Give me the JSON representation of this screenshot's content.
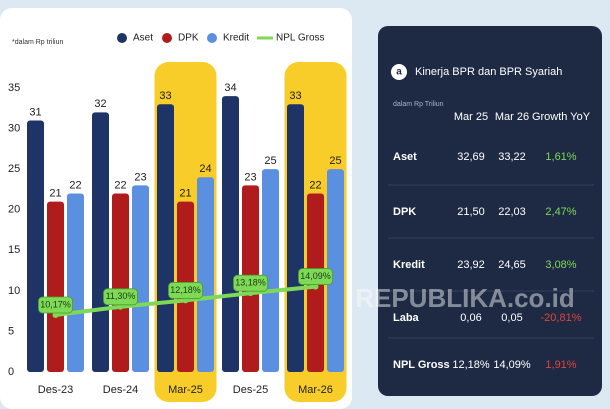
{
  "chart_data": {
    "type": "bar",
    "note": "*dalam Rp triliun",
    "categories": [
      "Des-23",
      "Des-24",
      "Mar-25",
      "Des-25",
      "Mar-26"
    ],
    "series": [
      {
        "name": "Aset",
        "color": "#1f3466",
        "values": [
          31,
          32,
          33,
          34,
          33
        ]
      },
      {
        "name": "DPK",
        "color": "#b01c1c",
        "values": [
          21,
          22,
          21,
          23,
          22
        ]
      },
      {
        "name": "Kredit",
        "color": "#5b8fe0",
        "values": [
          22,
          23,
          24,
          25,
          25
        ]
      },
      {
        "name": "NPL Gross",
        "color": "#7ed957",
        "type": "line",
        "axis": "y2",
        "values": [
          10.17,
          11.3,
          12.18,
          13.18,
          14.09
        ],
        "value_labels": [
          "10,17%",
          "11,30%",
          "12,18%",
          "13,18%",
          "14,09%"
        ]
      }
    ],
    "ylim": [
      0,
      35
    ],
    "yticks": [
      0,
      5,
      10,
      15,
      20,
      25,
      30,
      35
    ],
    "y2lim": [
      2.3,
      41.5
    ],
    "grid": false,
    "highlight": [
      2,
      4
    ],
    "highlight_color": "#f8cd2a"
  },
  "table": {
    "title": "Kinerja BPR dan BPR Syariah",
    "note": "dalam Rp Triliun",
    "header": [
      "Mar 25",
      "Mar 26",
      "Growth YoY"
    ],
    "rows": [
      [
        "Aset",
        "32,69",
        "33,22",
        "1,61%"
      ],
      [
        "DPK",
        "21,50",
        "22,03",
        "2,47%"
      ],
      [
        "Kredit",
        "23,92",
        "24,65",
        "3,08%"
      ],
      [
        "Laba",
        "0,06",
        "0,05",
        "-20,81%"
      ],
      [
        "NPL Gross",
        "12,18%",
        "14,09%",
        "1,91%"
      ]
    ],
    "growth_colors": [
      "#7ed957",
      "#7ed957",
      "#7ed957",
      "#e0443a",
      "#e0443a"
    ]
  },
  "watermark": "REPUBLIKA.co.id"
}
